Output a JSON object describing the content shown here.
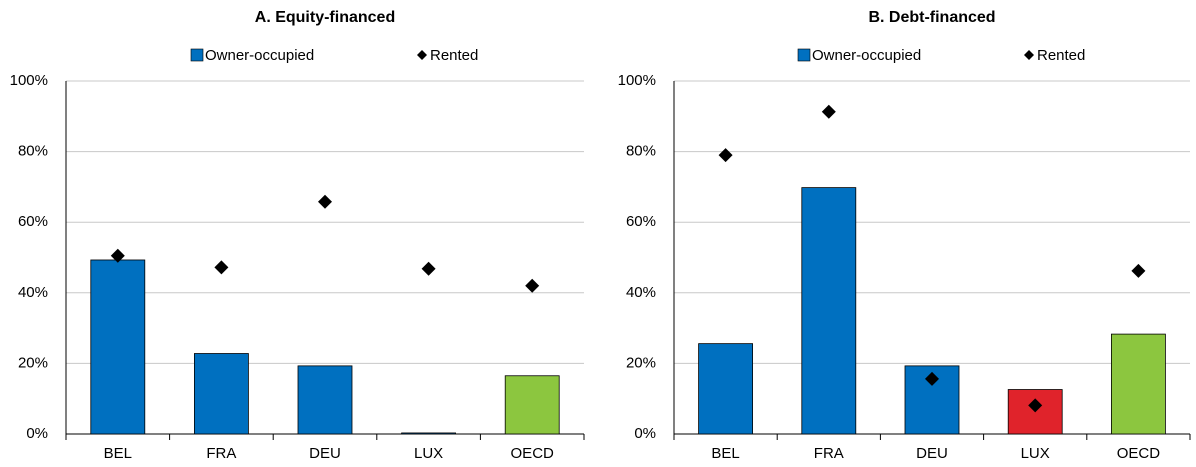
{
  "chart_data": [
    {
      "type": "bar",
      "title": "A. Equity-financed",
      "categories": [
        "BEL",
        "FRA",
        "DEU",
        "LUX",
        "OECD"
      ],
      "series": [
        {
          "name": "Owner-occupied",
          "color": "#0070c0",
          "colors": [
            "#0070c0",
            "#0070c0",
            "#0070c0",
            "#0070c0",
            "#8cc63f"
          ],
          "values": [
            49.3,
            22.8,
            19.3,
            0.3,
            16.5
          ]
        },
        {
          "name": "Rented",
          "marker": "diamond",
          "color": "#000000",
          "values": [
            50.5,
            47.2,
            65.8,
            46.8,
            42.0
          ]
        }
      ],
      "ylim": [
        0,
        100
      ],
      "yticks": [
        {
          "value": 0,
          "label": "0%"
        },
        {
          "value": 20,
          "label": "20%"
        },
        {
          "value": 40,
          "label": "40%"
        },
        {
          "value": 60,
          "label": "60%"
        },
        {
          "value": 80,
          "label": "80%"
        },
        {
          "value": 100,
          "label": "100%"
        }
      ],
      "grid": true,
      "legend": "top"
    },
    {
      "type": "bar",
      "title": "B. Debt-financed",
      "categories": [
        "BEL",
        "FRA",
        "DEU",
        "LUX",
        "OECD"
      ],
      "series": [
        {
          "name": "Owner-occupied",
          "color": "#0070c0",
          "colors": [
            "#0070c0",
            "#0070c0",
            "#0070c0",
            "#e0232b",
            "#8cc63f"
          ],
          "values": [
            25.6,
            69.8,
            19.3,
            12.6,
            28.3
          ]
        },
        {
          "name": "Rented",
          "marker": "diamond",
          "color": "#000000",
          "values": [
            79.0,
            91.3,
            15.6,
            8.1,
            46.2
          ]
        }
      ],
      "ylim": [
        0,
        100
      ],
      "yticks": [
        {
          "value": 0,
          "label": "0%"
        },
        {
          "value": 20,
          "label": "20%"
        },
        {
          "value": 40,
          "label": "40%"
        },
        {
          "value": 60,
          "label": "60%"
        },
        {
          "value": 80,
          "label": "80%"
        },
        {
          "value": 100,
          "label": "100%"
        }
      ],
      "grid": true,
      "legend": "top"
    }
  ]
}
